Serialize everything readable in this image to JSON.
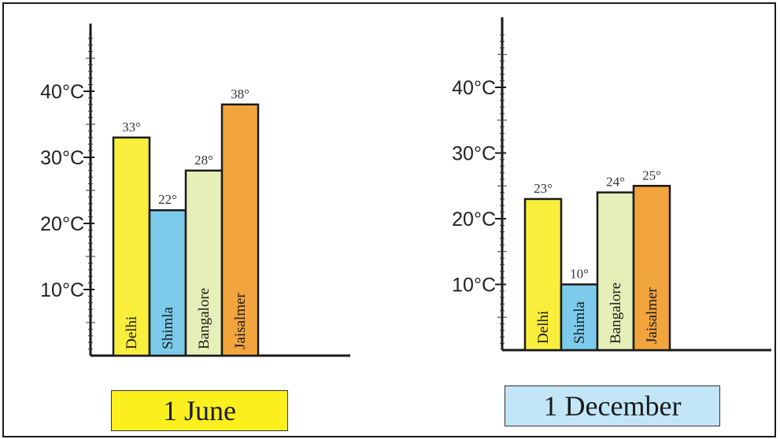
{
  "chart_data": [
    {
      "type": "bar",
      "caption": "1 June",
      "caption_color": "#fbef1e",
      "categories": [
        "Delhi",
        "Shimla",
        "Bangalore",
        "Jaisalmer"
      ],
      "values": [
        33,
        22,
        28,
        38
      ],
      "value_labels": [
        "33°",
        "22°",
        "28°",
        "38°"
      ],
      "colors": [
        "#f9ee3c",
        "#7ccbea",
        "#e6efb8",
        "#f2a53d"
      ],
      "y_ticks": [
        "10°C",
        "20°C",
        "30°C",
        "40°C"
      ],
      "y_tick_values": [
        10,
        20,
        30,
        40
      ],
      "ylim": [
        0,
        50
      ],
      "grid": false
    },
    {
      "type": "bar",
      "caption": "1 December",
      "caption_color": "#c2e6f7",
      "categories": [
        "Delhi",
        "Shimla",
        "Bangalore",
        "Jaisalmer"
      ],
      "values": [
        23,
        10,
        24,
        25
      ],
      "value_labels": [
        "23°",
        "10°",
        "24°",
        "25°"
      ],
      "colors": [
        "#f9ee3c",
        "#7ccbea",
        "#e6efb8",
        "#f2a53d"
      ],
      "y_ticks": [
        "10°C",
        "20°C",
        "30°C",
        "40°C"
      ],
      "y_tick_values": [
        10,
        20,
        30,
        40
      ],
      "ylim": [
        0,
        50
      ],
      "grid": false
    }
  ]
}
